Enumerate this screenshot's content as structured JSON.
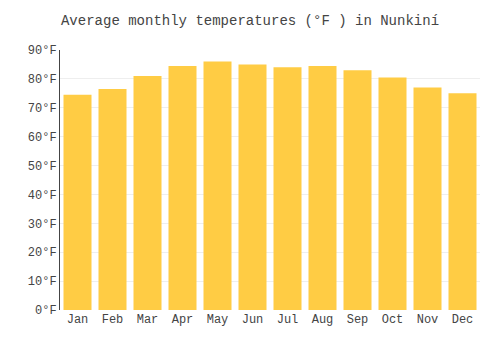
{
  "chart_data": {
    "type": "bar",
    "title": "Average monthly temperatures (°F ) in Nunkiní",
    "categories": [
      "Jan",
      "Feb",
      "Mar",
      "Apr",
      "May",
      "Jun",
      "Jul",
      "Aug",
      "Sep",
      "Oct",
      "Nov",
      "Dec"
    ],
    "values": [
      74.5,
      76.5,
      81.0,
      84.5,
      86.0,
      85.0,
      84.0,
      84.5,
      83.0,
      80.5,
      77.0,
      75.0
    ],
    "color": "#FFCC44",
    "ylim": [
      0,
      90
    ],
    "yticks": [
      {
        "value": 0,
        "label": "0°F"
      },
      {
        "value": 10,
        "label": "10°F"
      },
      {
        "value": 20,
        "label": "20°F"
      },
      {
        "value": 30,
        "label": "30°F"
      },
      {
        "value": 40,
        "label": "40°F"
      },
      {
        "value": 50,
        "label": "50°F"
      },
      {
        "value": 60,
        "label": "60°F"
      },
      {
        "value": 70,
        "label": "70°F"
      },
      {
        "value": 80,
        "label": "80°F"
      },
      {
        "value": 90,
        "label": "90°F"
      }
    ],
    "grid": true
  }
}
